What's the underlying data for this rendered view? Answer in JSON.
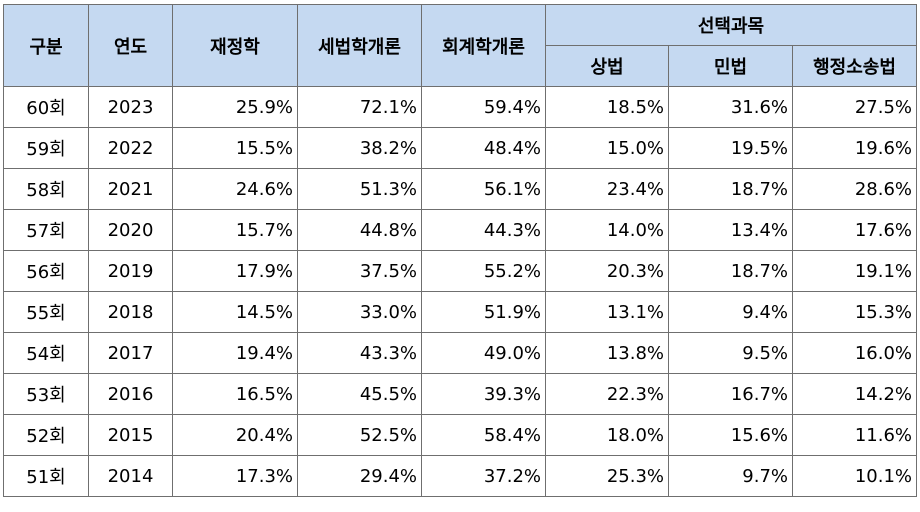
{
  "header": {
    "gubun": "구분",
    "year": "연도",
    "finance": "재정학",
    "tax_law": "세법학개론",
    "accounting": "회계학개론",
    "elective_group": "선택과목",
    "commercial_law": "상법",
    "civil_law": "민법",
    "admin_litigation": "행정소송법"
  },
  "rows": [
    {
      "session": "60회",
      "year": "2023",
      "finance": "25.9%",
      "tax_law": "72.1%",
      "accounting": "59.4%",
      "commercial_law": "18.5%",
      "civil_law": "31.6%",
      "admin_litigation": "27.5%"
    },
    {
      "session": "59회",
      "year": "2022",
      "finance": "15.5%",
      "tax_law": "38.2%",
      "accounting": "48.4%",
      "commercial_law": "15.0%",
      "civil_law": "19.5%",
      "admin_litigation": "19.6%"
    },
    {
      "session": "58회",
      "year": "2021",
      "finance": "24.6%",
      "tax_law": "51.3%",
      "accounting": "56.1%",
      "commercial_law": "23.4%",
      "civil_law": "18.7%",
      "admin_litigation": "28.6%"
    },
    {
      "session": "57회",
      "year": "2020",
      "finance": "15.7%",
      "tax_law": "44.8%",
      "accounting": "44.3%",
      "commercial_law": "14.0%",
      "civil_law": "13.4%",
      "admin_litigation": "17.6%"
    },
    {
      "session": "56회",
      "year": "2019",
      "finance": "17.9%",
      "tax_law": "37.5%",
      "accounting": "55.2%",
      "commercial_law": "20.3%",
      "civil_law": "18.7%",
      "admin_litigation": "19.1%"
    },
    {
      "session": "55회",
      "year": "2018",
      "finance": "14.5%",
      "tax_law": "33.0%",
      "accounting": "51.9%",
      "commercial_law": "13.1%",
      "civil_law": "9.4%",
      "admin_litigation": "15.3%"
    },
    {
      "session": "54회",
      "year": "2017",
      "finance": "19.4%",
      "tax_law": "43.3%",
      "accounting": "49.0%",
      "commercial_law": "13.8%",
      "civil_law": "9.5%",
      "admin_litigation": "16.0%"
    },
    {
      "session": "53회",
      "year": "2016",
      "finance": "16.5%",
      "tax_law": "45.5%",
      "accounting": "39.3%",
      "commercial_law": "22.3%",
      "civil_law": "16.7%",
      "admin_litigation": "14.2%"
    },
    {
      "session": "52회",
      "year": "2015",
      "finance": "20.4%",
      "tax_law": "52.5%",
      "accounting": "58.4%",
      "commercial_law": "18.0%",
      "civil_law": "15.6%",
      "admin_litigation": "11.6%"
    },
    {
      "session": "51회",
      "year": "2014",
      "finance": "17.3%",
      "tax_law": "29.4%",
      "accounting": "37.2%",
      "commercial_law": "25.3%",
      "civil_law": "9.7%",
      "admin_litigation": "10.1%"
    }
  ]
}
